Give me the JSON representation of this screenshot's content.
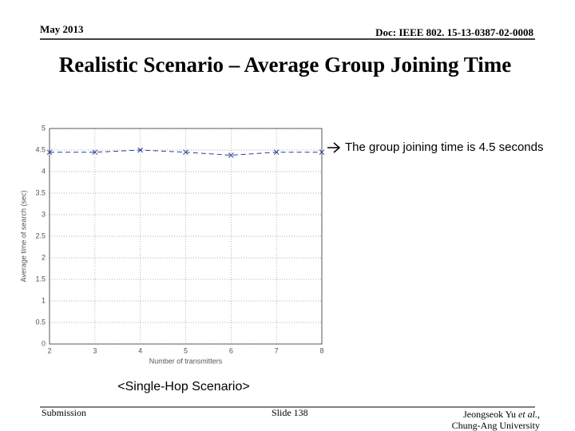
{
  "header": {
    "date": "May 2013",
    "doc": "Doc: IEEE 802. 15-13-0387-02-0008",
    "title": "Realistic Scenario – Average Group Joining Time"
  },
  "annotation": "The group joining time is 4.5 seconds",
  "caption": "<Single-Hop Scenario>",
  "footer": {
    "left": "Submission",
    "center": "Slide 138",
    "author": "Jeongseok Yu",
    "author_etal": "et al.",
    "author_suffix": ",",
    "affiliation": "Chung-Ang University"
  },
  "chart_data": {
    "type": "line",
    "xlabel": "Number of transmitters",
    "ylabel": "Average time of search (sec)",
    "x": [
      2,
      3,
      4,
      5,
      6,
      7,
      8
    ],
    "series": [
      {
        "color": "#2b3f9e",
        "values": [
          4.45,
          4.45,
          4.5,
          4.45,
          4.38,
          4.45,
          4.45
        ]
      }
    ],
    "xlim": [
      2,
      8
    ],
    "xticks": [
      2,
      3,
      4,
      5,
      6,
      7,
      8
    ],
    "ylim": [
      0,
      5
    ],
    "yticks": [
      0,
      0.5,
      1,
      1.5,
      2,
      2.5,
      3,
      3.5,
      4,
      4.5,
      5
    ],
    "grid": true
  }
}
